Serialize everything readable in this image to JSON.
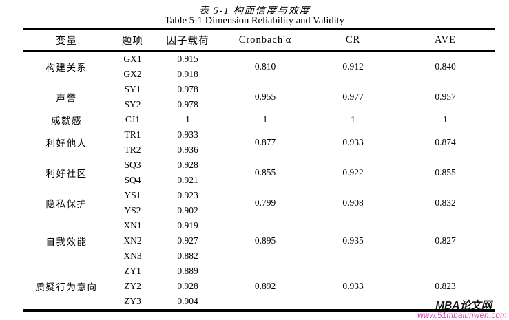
{
  "page": {
    "title_cn": "表 5-1 构面信度与效度",
    "title_en": "Table 5-1 Dimension Reliability and Validity"
  },
  "table": {
    "headers": [
      "变量",
      "题项",
      "因子载荷",
      "Cronbach'α",
      "CR",
      "AVE"
    ],
    "groups": [
      {
        "variable": "构建关系",
        "cronbach": "0.810",
        "cr": "0.912",
        "ave": "0.840",
        "items": [
          {
            "code": "GX1",
            "loading": "0.915"
          },
          {
            "code": "GX2",
            "loading": "0.918"
          }
        ]
      },
      {
        "variable": "声誉",
        "cronbach": "0.955",
        "cr": "0.977",
        "ave": "0.957",
        "items": [
          {
            "code": "SY1",
            "loading": "0.978"
          },
          {
            "code": "SY2",
            "loading": "0.978"
          }
        ]
      },
      {
        "variable": "成就感",
        "cronbach": "1",
        "cr": "1",
        "ave": "1",
        "items": [
          {
            "code": "CJ1",
            "loading": "1"
          }
        ]
      },
      {
        "variable": "利好他人",
        "cronbach": "0.877",
        "cr": "0.933",
        "ave": "0.874",
        "items": [
          {
            "code": "TR1",
            "loading": "0.933"
          },
          {
            "code": "TR2",
            "loading": "0.936"
          }
        ]
      },
      {
        "variable": "利好社区",
        "cronbach": "0.855",
        "cr": "0.922",
        "ave": "0.855",
        "items": [
          {
            "code": "SQ3",
            "loading": "0.928"
          },
          {
            "code": "SQ4",
            "loading": "0.921"
          }
        ]
      },
      {
        "variable": "隐私保护",
        "cronbach": "0.799",
        "cr": "0.908",
        "ave": "0.832",
        "items": [
          {
            "code": "YS1",
            "loading": "0.923"
          },
          {
            "code": "YS2",
            "loading": "0.902"
          }
        ]
      },
      {
        "variable": "自我效能",
        "cronbach": "0.895",
        "cr": "0.935",
        "ave": "0.827",
        "items": [
          {
            "code": "XN1",
            "loading": "0.919"
          },
          {
            "code": "XN2",
            "loading": "0.927"
          },
          {
            "code": "XN3",
            "loading": "0.882"
          }
        ]
      },
      {
        "variable": "质疑行为意向",
        "cronbach": "0.892",
        "cr": "0.933",
        "ave": "0.823",
        "items": [
          {
            "code": "ZY1",
            "loading": "0.889"
          },
          {
            "code": "ZY2",
            "loading": "0.928"
          },
          {
            "code": "ZY3",
            "loading": "0.904"
          }
        ]
      }
    ]
  },
  "watermark": {
    "site_name": "MBA论文网",
    "site_url": "www.51mbalunwen.com",
    "url_color": "#e23bb0",
    "name_color": "#141414"
  },
  "colors": {
    "text": "#000000",
    "border": "#000000",
    "background": "#ffffff"
  }
}
